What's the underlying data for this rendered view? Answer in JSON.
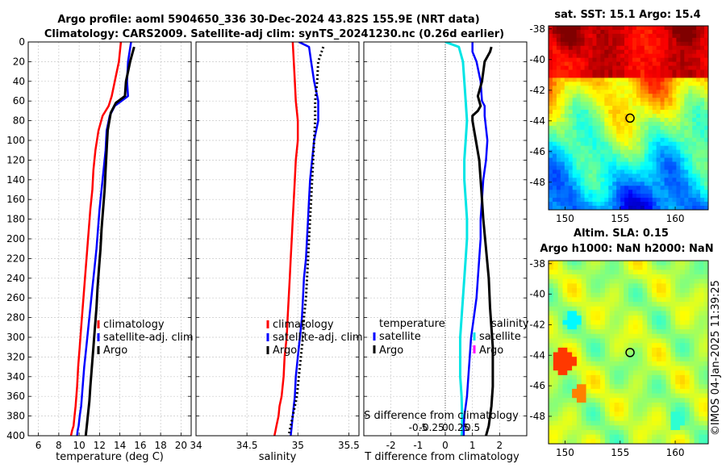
{
  "title": {
    "line1": "Argo profile: aoml 5904650_336 30-Dec-2024 43.82S 155.9E (NRT data)",
    "line2": "Climatology: CARS2009. Satellite-adj clim: synTS_20241230.nc (0.26d earlier)"
  },
  "side_label": "©IMOS 04-Jan-2025 11:39:25",
  "depth_ticks": [
    "0",
    "20",
    "40",
    "60",
    "80",
    "100",
    "120",
    "140",
    "160",
    "180",
    "200",
    "220",
    "240",
    "260",
    "280",
    "300",
    "320",
    "340",
    "360",
    "380",
    "400"
  ],
  "chart_data": [
    {
      "type": "line",
      "name": "temperature",
      "xlabel": "temperature (deg C)",
      "ylabel": "depth",
      "xlim": [
        5,
        21
      ],
      "ylim": [
        400,
        0
      ],
      "xticks": [
        6,
        8,
        10,
        12,
        14,
        16,
        18,
        20
      ],
      "xticklabels": [
        "6",
        "8",
        "10",
        "12",
        "14",
        "16",
        "18",
        "20"
      ],
      "legend": [
        "climatology",
        "satellite-adj. clim",
        "Argo"
      ],
      "series": [
        {
          "name": "climatology",
          "color": "#ff0000",
          "width": 2.5,
          "x": [
            14.1,
            13.9,
            13.5,
            13.2,
            12.9,
            12.3,
            11.9,
            11.6,
            11.4,
            11.3,
            11.1,
            10.95,
            10.8,
            10.65,
            10.5,
            10.35,
            10.2,
            10.05,
            9.9,
            9.8,
            9.65,
            9.55,
            9.45,
            9.3,
            9.2,
            9.1
          ],
          "y": [
            0,
            20,
            40,
            55,
            65,
            75,
            90,
            110,
            130,
            150,
            170,
            190,
            210,
            230,
            250,
            270,
            290,
            310,
            330,
            350,
            370,
            380,
            390,
            395,
            400,
            400
          ]
        },
        {
          "name": "satellite-adj. clim",
          "color": "#0000ff",
          "width": 2.5,
          "x": [
            15.1,
            14.8,
            14.7,
            14.8,
            13.5,
            13.0,
            12.7,
            12.6,
            12.4,
            12.2,
            12.0,
            11.85,
            11.7,
            11.5,
            11.3,
            11.1,
            10.9,
            10.7,
            10.5,
            10.35,
            10.2,
            10.05,
            9.95,
            9.85,
            9.8
          ],
          "y": [
            0,
            20,
            40,
            55,
            65,
            75,
            90,
            110,
            130,
            150,
            170,
            190,
            210,
            230,
            250,
            270,
            290,
            310,
            330,
            350,
            370,
            380,
            390,
            395,
            400
          ]
        },
        {
          "name": "Argo",
          "color": "#000000",
          "width": 3,
          "x": [
            15.4,
            15.0,
            14.6,
            14.5,
            13.6,
            13.1,
            12.8,
            12.7,
            12.6,
            12.5,
            12.35,
            12.2,
            12.1,
            11.95,
            11.8,
            11.7,
            11.55,
            11.4,
            11.25,
            11.1,
            11.0,
            10.9,
            10.75,
            10.65
          ],
          "y": [
            5,
            20,
            40,
            55,
            62,
            72,
            90,
            110,
            130,
            150,
            170,
            190,
            210,
            230,
            250,
            270,
            290,
            310,
            330,
            350,
            365,
            375,
            390,
            400
          ]
        }
      ]
    },
    {
      "type": "line",
      "name": "salinity",
      "xlabel": "salinity",
      "ylabel": "depth",
      "xlim": [
        34,
        35.6
      ],
      "ylim": [
        400,
        0
      ],
      "xticks": [
        34,
        34.5,
        35,
        35.5
      ],
      "xticklabels": [
        "34",
        "34.5",
        "35",
        "35.5"
      ],
      "legend": [
        "climatology",
        "satellite-adj. clim",
        "Argo"
      ],
      "series": [
        {
          "name": "climatology",
          "color": "#ff0000",
          "width": 2.5,
          "x": [
            34.95,
            34.96,
            34.97,
            34.98,
            35.0,
            35.0,
            34.98,
            34.97,
            34.96,
            34.95,
            34.94,
            34.93,
            34.92,
            34.91,
            34.9,
            34.89,
            34.87,
            34.86,
            34.84,
            34.82,
            34.81,
            34.79,
            34.78,
            34.77
          ],
          "y": [
            0,
            20,
            40,
            60,
            80,
            100,
            120,
            140,
            160,
            180,
            200,
            220,
            240,
            260,
            280,
            300,
            320,
            340,
            360,
            370,
            380,
            390,
            395,
            400
          ]
        },
        {
          "name": "satellite-adj. clim",
          "color": "#0000ff",
          "width": 2.5,
          "x": [
            35.01,
            35.11,
            35.13,
            35.16,
            35.2,
            35.2,
            35.16,
            35.14,
            35.12,
            35.11,
            35.1,
            35.09,
            35.08,
            35.06,
            35.05,
            35.04,
            35.02,
            35.0,
            34.98,
            34.97,
            34.96,
            34.95,
            34.94,
            34.93
          ],
          "y": [
            0,
            5,
            20,
            40,
            60,
            80,
            100,
            120,
            140,
            160,
            180,
            200,
            220,
            240,
            260,
            280,
            300,
            320,
            340,
            360,
            370,
            380,
            390,
            400
          ]
        },
        {
          "name": "Argo",
          "color": "#000000",
          "width": 3,
          "dash": "2,3",
          "x": [
            35.25,
            35.2,
            35.19,
            35.17,
            35.17,
            35.16,
            35.15,
            35.14,
            35.13,
            35.12,
            35.11,
            35.1,
            35.09,
            35.08,
            35.06,
            35.05,
            35.03,
            35.01,
            34.99,
            34.97,
            34.95,
            34.93,
            34.91
          ],
          "y": [
            5,
            20,
            40,
            60,
            80,
            100,
            120,
            140,
            160,
            180,
            200,
            220,
            240,
            260,
            280,
            300,
            320,
            340,
            360,
            370,
            380,
            390,
            400
          ]
        }
      ]
    },
    {
      "type": "line",
      "name": "difference",
      "xlabel": "T difference from climatology",
      "xlabel2": "S difference from climatology",
      "ylabel": "depth",
      "xlim": [
        -3,
        3
      ],
      "ylim": [
        400,
        0
      ],
      "xticks": [
        -2,
        -1,
        0,
        1,
        2
      ],
      "xticklabels": [
        "-2",
        "-1",
        "0",
        "1",
        "2"
      ],
      "xticks2": [
        -1,
        -0.5,
        0,
        0.5,
        1
      ],
      "xticklabels2": [
        "-0.5",
        "-0.25",
        "0",
        "0.25",
        "0.5"
      ],
      "legend_left_title": "temperature",
      "legend_right_title": "salinity",
      "legend_left": [
        "satellite",
        "Argo"
      ],
      "legend_right": [
        "satellite",
        "Argo"
      ],
      "series": [
        {
          "name": "satellite salinity diff",
          "color": "#00e5e5",
          "width": 3,
          "x": [
            0.0,
            0.5,
            0.65,
            0.7,
            0.75,
            0.8,
            0.75,
            0.7,
            0.7,
            0.75,
            0.8,
            0.8,
            0.75,
            0.7,
            0.65,
            0.6,
            0.55,
            0.55,
            0.55,
            0.6,
            0.62,
            0.62,
            0.6
          ],
          "y": [
            0,
            5,
            20,
            40,
            60,
            80,
            100,
            120,
            140,
            160,
            180,
            200,
            220,
            240,
            260,
            280,
            300,
            320,
            340,
            360,
            380,
            395,
            400
          ]
        },
        {
          "name": "satellite temperature diff",
          "color": "#0000ff",
          "width": 2.5,
          "x": [
            1.0,
            1.0,
            1.15,
            1.3,
            1.35,
            1.45,
            1.45,
            1.55,
            1.5,
            1.4,
            1.35,
            1.3,
            1.3,
            1.25,
            1.2,
            1.15,
            1.05,
            0.95,
            0.9,
            0.85,
            0.8,
            0.75,
            0.7,
            0.68,
            0.68,
            0.68
          ],
          "y": [
            0,
            10,
            20,
            40,
            60,
            65,
            75,
            100,
            120,
            140,
            160,
            180,
            200,
            220,
            240,
            260,
            280,
            300,
            320,
            340,
            360,
            370,
            380,
            390,
            395,
            400
          ]
        },
        {
          "name": "Argo temperature diff",
          "color": "#000000",
          "width": 3,
          "x": [
            1.7,
            1.65,
            1.45,
            1.35,
            1.2,
            1.3,
            1.2,
            1.0,
            1.0,
            1.25,
            1.3,
            1.35,
            1.4,
            1.5,
            1.6,
            1.65,
            1.7,
            1.75,
            1.75,
            1.75,
            1.7,
            1.65,
            1.6,
            1.55,
            1.5
          ],
          "y": [
            5,
            10,
            20,
            40,
            55,
            65,
            70,
            75,
            80,
            120,
            140,
            160,
            180,
            210,
            240,
            270,
            290,
            310,
            330,
            350,
            370,
            380,
            390,
            395,
            400
          ]
        },
        {
          "name": "Argo salinity diff",
          "color": "#000000",
          "width": 3,
          "dash": "2,3",
          "x": [
            1.8
          ],
          "y": [
            5
          ]
        }
      ]
    },
    {
      "type": "heatmap",
      "name": "sst_map",
      "title": "sat. SST: 15.1 Argo: 15.4",
      "xlim": [
        148.5,
        163
      ],
      "ylim": [
        -49.8,
        -37.8
      ],
      "xticks": [
        150,
        155,
        160
      ],
      "xticklabels": [
        "150",
        "155",
        "160"
      ],
      "yticks": [
        -38,
        -40,
        -42,
        -44,
        -46,
        -48
      ],
      "yticklabels": [
        "-38",
        "-40",
        "-42",
        "-44",
        "-46",
        "-48"
      ],
      "marker": {
        "lon": 155.9,
        "lat": -43.82
      },
      "colormap": "jet"
    },
    {
      "type": "heatmap",
      "name": "sla_map",
      "title1": "Altim. SLA: 0.15",
      "title2": "Argo h1000: NaN h2000: NaN",
      "xlim": [
        148.5,
        163
      ],
      "ylim": [
        -49.8,
        -37.8
      ],
      "xticks": [
        150,
        155,
        160
      ],
      "xticklabels": [
        "150",
        "155",
        "160"
      ],
      "yticks": [
        -38,
        -40,
        -42,
        -44,
        -46,
        -48
      ],
      "yticklabels": [
        "-38",
        "-40",
        "-42",
        "-44",
        "-46",
        "-48"
      ],
      "marker": {
        "lon": 155.9,
        "lat": -43.82
      },
      "colormap": "jet"
    }
  ]
}
